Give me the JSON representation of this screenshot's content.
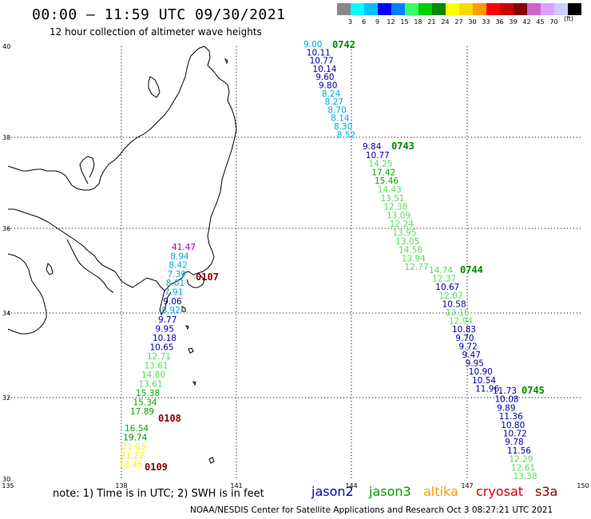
{
  "header": {
    "title": "00:00 – 11:59 UTC 09/30/2021",
    "subtitle": "12 hour collection of altimeter wave heights"
  },
  "legend": {
    "colors": [
      "#888888",
      "#00ffff",
      "#00bfff",
      "#0000ff",
      "#0080ff",
      "#33ff66",
      "#00cc00",
      "#008800",
      "#ffff00",
      "#ffd700",
      "#ff9900",
      "#ff0000",
      "#cc0000",
      "#880000",
      "#cc66cc",
      "#dda0ff",
      "#ccccff",
      "#000000"
    ],
    "labels": [
      "3",
      "6",
      "9",
      "12",
      "15",
      "18",
      "21",
      "24",
      "27",
      "30",
      "33",
      "36",
      "39",
      "42",
      "45",
      "70"
    ],
    "unit": "(ft)"
  },
  "axes": {
    "lon_labels": [
      "135",
      "138",
      "141",
      "144",
      "147",
      "150"
    ],
    "lat_labels": [
      "40",
      "38",
      "36",
      "34",
      "32",
      "30"
    ]
  },
  "tracks": [
    {
      "time": "0742",
      "color": "#008800",
      "values": [
        {
          "v": "9.00",
          "c": "#00aadd"
        },
        {
          "v": "10.11",
          "c": "#0000aa"
        },
        {
          "v": "10.77",
          "c": "#0000aa"
        },
        {
          "v": "10.14",
          "c": "#0000aa"
        },
        {
          "v": "9.60",
          "c": "#0000aa"
        },
        {
          "v": "9.80",
          "c": "#0000aa"
        },
        {
          "v": "8.24",
          "c": "#00aadd"
        },
        {
          "v": "8.27",
          "c": "#00aadd"
        },
        {
          "v": "8.70",
          "c": "#00aadd"
        },
        {
          "v": "8.14",
          "c": "#00aadd"
        },
        {
          "v": "8.30",
          "c": "#00aadd"
        },
        {
          "v": "8.52",
          "c": "#00aadd"
        }
      ]
    },
    {
      "time": "0743",
      "color": "#008800",
      "values": [
        {
          "v": "9.84",
          "c": "#0000aa"
        },
        {
          "v": "10.77",
          "c": "#0000aa"
        },
        {
          "v": "14.25",
          "c": "#55dd55"
        },
        {
          "v": "17.42",
          "c": "#00aa00"
        },
        {
          "v": "15.46",
          "c": "#00aa00"
        },
        {
          "v": "14.43",
          "c": "#55dd55"
        },
        {
          "v": "13.51",
          "c": "#55dd55"
        },
        {
          "v": "12.38",
          "c": "#55dd55"
        },
        {
          "v": "13.09",
          "c": "#55dd55"
        },
        {
          "v": "12.24",
          "c": "#55dd55"
        },
        {
          "v": "13.95",
          "c": "#55dd55"
        },
        {
          "v": "13.05",
          "c": "#55dd55"
        },
        {
          "v": "14.58",
          "c": "#55dd55"
        },
        {
          "v": "13.94",
          "c": "#55dd55"
        },
        {
          "v": "12.77",
          "c": "#55dd55"
        }
      ]
    },
    {
      "time": "0744",
      "color": "#008800",
      "values": [
        {
          "v": "14.74",
          "c": "#55dd55"
        },
        {
          "v": "12.37",
          "c": "#55dd55"
        },
        {
          "v": "10.67",
          "c": "#0000aa"
        },
        {
          "v": "12.07",
          "c": "#55dd55"
        },
        {
          "v": "10.58",
          "c": "#0000aa"
        },
        {
          "v": "13.15",
          "c": "#55dd55"
        },
        {
          "v": "12.94",
          "c": "#55dd55"
        },
        {
          "v": "10.83",
          "c": "#0000aa"
        },
        {
          "v": "9.70",
          "c": "#0000aa"
        },
        {
          "v": "9.72",
          "c": "#0000aa"
        },
        {
          "v": "9.47",
          "c": "#0000aa"
        },
        {
          "v": "9.95",
          "c": "#0000aa"
        },
        {
          "v": "10.90",
          "c": "#0000aa"
        },
        {
          "v": "10.54",
          "c": "#0000aa"
        },
        {
          "v": "11.96",
          "c": "#0000aa"
        }
      ]
    },
    {
      "time": "0745",
      "color": "#008800",
      "values": [
        {
          "v": "11.73",
          "c": "#0000aa"
        },
        {
          "v": "10.08",
          "c": "#0000aa"
        },
        {
          "v": "9.89",
          "c": "#0000aa"
        },
        {
          "v": "11.36",
          "c": "#0000aa"
        },
        {
          "v": "10.80",
          "c": "#0000aa"
        },
        {
          "v": "10.72",
          "c": "#0000aa"
        },
        {
          "v": "9.78",
          "c": "#0000aa"
        },
        {
          "v": "11.56",
          "c": "#0000aa"
        },
        {
          "v": "12.29",
          "c": "#55dd55"
        },
        {
          "v": "12.61",
          "c": "#55dd55"
        },
        {
          "v": "13.38",
          "c": "#55dd55"
        }
      ]
    },
    {
      "time": "0107",
      "color": "#880000",
      "values": [
        {
          "v": "41.47",
          "c": "#aa00aa"
        },
        {
          "v": "8.94",
          "c": "#00aadd"
        },
        {
          "v": "8.42",
          "c": "#00aadd"
        },
        {
          "v": "7.39",
          "c": "#00aadd"
        },
        {
          "v": "8.01",
          "c": "#00aadd"
        },
        {
          "v": "7.91",
          "c": "#00aadd"
        },
        {
          "v": "9.06",
          "c": "#0000aa"
        },
        {
          "v": "8.92",
          "c": "#00aadd"
        }
      ]
    },
    {
      "time": "0108",
      "color": "#880000",
      "values": [
        {
          "v": "9.77",
          "c": "#0000aa"
        },
        {
          "v": "9.95",
          "c": "#0000aa"
        },
        {
          "v": "10.18",
          "c": "#0000aa"
        },
        {
          "v": "10.65",
          "c": "#0000aa"
        },
        {
          "v": "12.71",
          "c": "#55dd55"
        },
        {
          "v": "13.61",
          "c": "#55dd55"
        },
        {
          "v": "14.80",
          "c": "#55dd55"
        },
        {
          "v": "13.61",
          "c": "#55dd55"
        },
        {
          "v": "15.38",
          "c": "#00aa00"
        },
        {
          "v": "15.34",
          "c": "#00aa00"
        },
        {
          "v": "17.89",
          "c": "#00aa00"
        }
      ]
    },
    {
      "time": "0109",
      "color": "#880000",
      "values": [
        {
          "v": "16.54",
          "c": "#00aa00"
        },
        {
          "v": "19.74",
          "c": "#008800"
        },
        {
          "v": "21.03",
          "c": "#ffee00"
        },
        {
          "v": "21.22",
          "c": "#ffee00"
        },
        {
          "v": "23.45",
          "c": "#ffee00"
        }
      ]
    }
  ],
  "footer": {
    "note": "note:  1) Time is in UTC;  2) SWH is in feet",
    "satellites": [
      {
        "name": "jason2",
        "color": "#0000cc"
      },
      {
        "name": "jason3",
        "color": "#009900"
      },
      {
        "name": "altika",
        "color": "#ff9900"
      },
      {
        "name": "cryosat",
        "color": "#dd0000"
      },
      {
        "name": "s3a",
        "color": "#880000"
      }
    ],
    "credit": "NOAA/NESDIS Center for Satellite Applications and Research    Oct  3 08:27:21 UTC 2021"
  }
}
